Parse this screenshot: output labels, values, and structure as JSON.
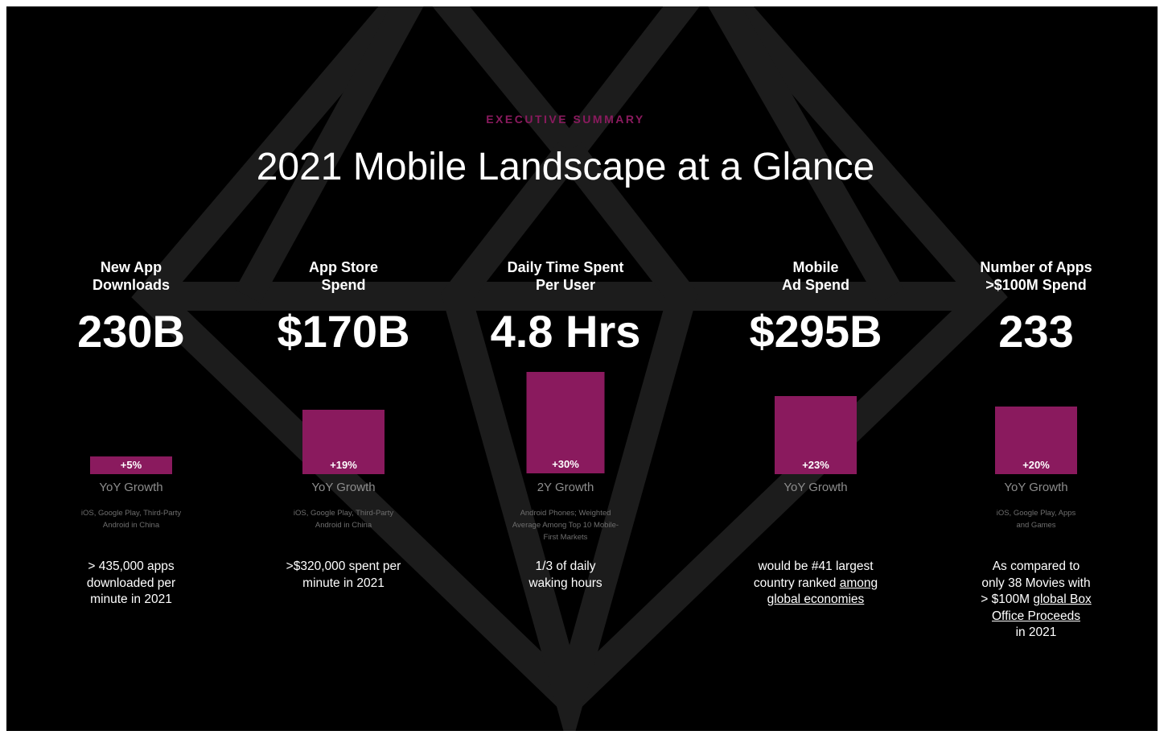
{
  "header": {
    "eyebrow": "EXECUTIVE SUMMARY",
    "title": "2021 Mobile Landscape at a Glance"
  },
  "colors": {
    "background": "#000000",
    "accent": "#8a1a5e",
    "gem_outline": "#1c1c1c"
  },
  "metrics": [
    {
      "heading_line1": "New App",
      "heading_line2": "Downloads",
      "value": "230B",
      "growth_label": "+5%",
      "growth_percent": 5,
      "growth_type": "YoY Growth",
      "note_line1": "iOS, Google Play, Third-Party",
      "note_line2": "Android in China",
      "note_line3": "",
      "desc_line1": "> 435,000 apps",
      "desc_line2": "downloaded per",
      "desc_line3": "minute in 2021",
      "desc_line4": "",
      "desc_line5": ""
    },
    {
      "heading_line1": "App Store",
      "heading_line2": "Spend",
      "value": "$170B",
      "growth_label": "+19%",
      "growth_percent": 19,
      "growth_type": "YoY Growth",
      "note_line1": "iOS, Google Play, Third-Party",
      "note_line2": "Android in China",
      "note_line3": "",
      "desc_line1": ">$320,000 spent per",
      "desc_line2": "minute in 2021",
      "desc_line3": "",
      "desc_line4": "",
      "desc_line5": ""
    },
    {
      "heading_line1": "Daily Time Spent",
      "heading_line2": "Per User",
      "value": "4.8 Hrs",
      "growth_label": "+30%",
      "growth_percent": 30,
      "growth_type": "2Y Growth",
      "note_line1": "Android Phones; Weighted",
      "note_line2": "Average Among Top 10 Mobile-",
      "note_line3": "First  Markets",
      "desc_line1": "1/3 of daily",
      "desc_line2": "waking hours",
      "desc_line3": "",
      "desc_line4": "",
      "desc_line5": ""
    },
    {
      "heading_line1": "Mobile",
      "heading_line2": "Ad Spend",
      "value": "$295B",
      "growth_label": "+23%",
      "growth_percent": 23,
      "growth_type": "YoY Growth",
      "note_line1": "",
      "note_line2": "",
      "note_line3": "",
      "desc_line1": "would be #41 largest",
      "desc_line2a": "country ranked ",
      "desc_link1": "among ",
      "desc_link2": "global economies",
      "desc_line3": "",
      "desc_line4": "",
      "desc_line5": ""
    },
    {
      "heading_line1": "Number of Apps",
      "heading_line2": ">$100M Spend",
      "value": "233",
      "growth_label": "+20%",
      "growth_percent": 20,
      "growth_type": "YoY Growth",
      "note_line1": "iOS, Google Play, Apps",
      "note_line2": "and Games",
      "note_line3": "",
      "desc_line1": "As compared to",
      "desc_line2": "only 38 Movies with",
      "desc_line3a": "> $100M ",
      "desc_link1": "global Box ",
      "desc_link2": "Office Proceeds",
      "desc_line5": "in 2021"
    }
  ]
}
